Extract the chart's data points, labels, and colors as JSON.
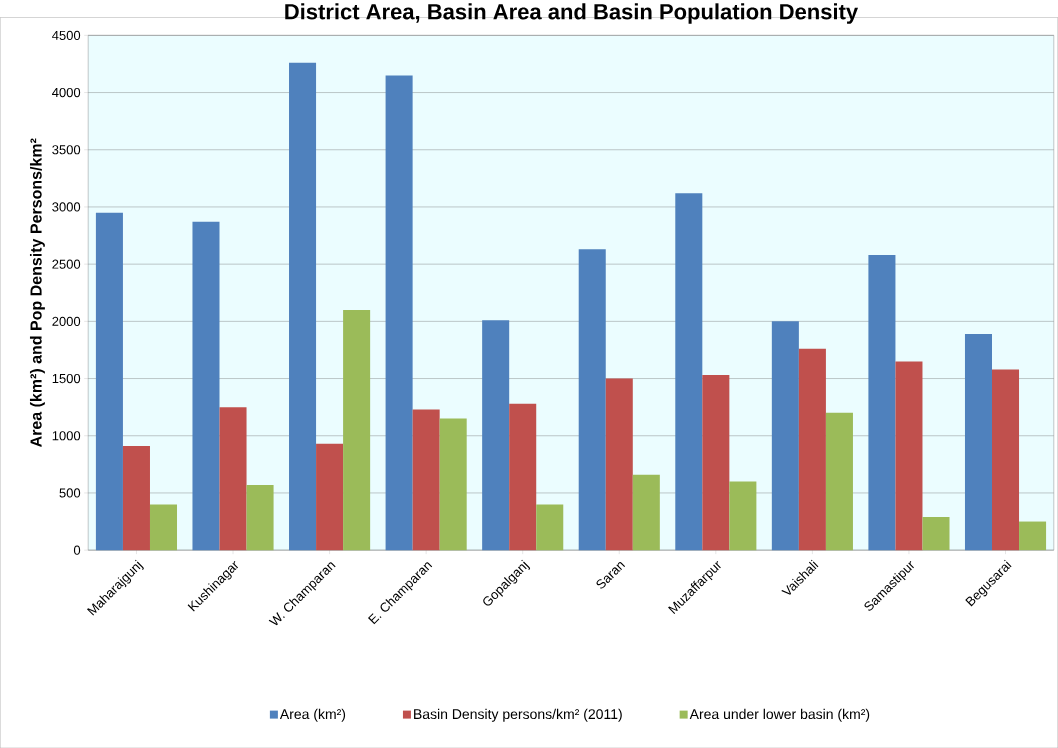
{
  "chart_data": {
    "type": "bar",
    "title": "District Area, Basin Area and Basin Population Density",
    "ylabel": "Area (km²) and Pop Density Persons/km²",
    "categories": [
      "Maharajgunj",
      "Kushinagar",
      "W. Champaran",
      "E. Champaran",
      "Gopalganj",
      "Saran",
      "Muzaffarpur",
      "Vaishali",
      "Samastipur",
      "Begusarai"
    ],
    "series": [
      {
        "name": "Area (km²)",
        "color": "#4f81bd",
        "values": [
          2950,
          2870,
          4260,
          4150,
          2010,
          2630,
          3120,
          2000,
          2580,
          1890
        ]
      },
      {
        "name": "Basin Density persons/km² (2011)",
        "color": "#c0504d",
        "values": [
          910,
          1250,
          930,
          1230,
          1280,
          1500,
          1530,
          1760,
          1650,
          1580
        ]
      },
      {
        "name": "Area under lower basin (km²)",
        "color": "#9bbb59",
        "values": [
          400,
          570,
          2100,
          1150,
          400,
          660,
          600,
          1200,
          290,
          250
        ]
      }
    ],
    "ylim": [
      0,
      4500
    ],
    "yticks": [
      0,
      500,
      1000,
      1500,
      2000,
      2500,
      3000,
      3500,
      4000,
      4500
    ],
    "grid": "y",
    "legend": "bottom"
  }
}
